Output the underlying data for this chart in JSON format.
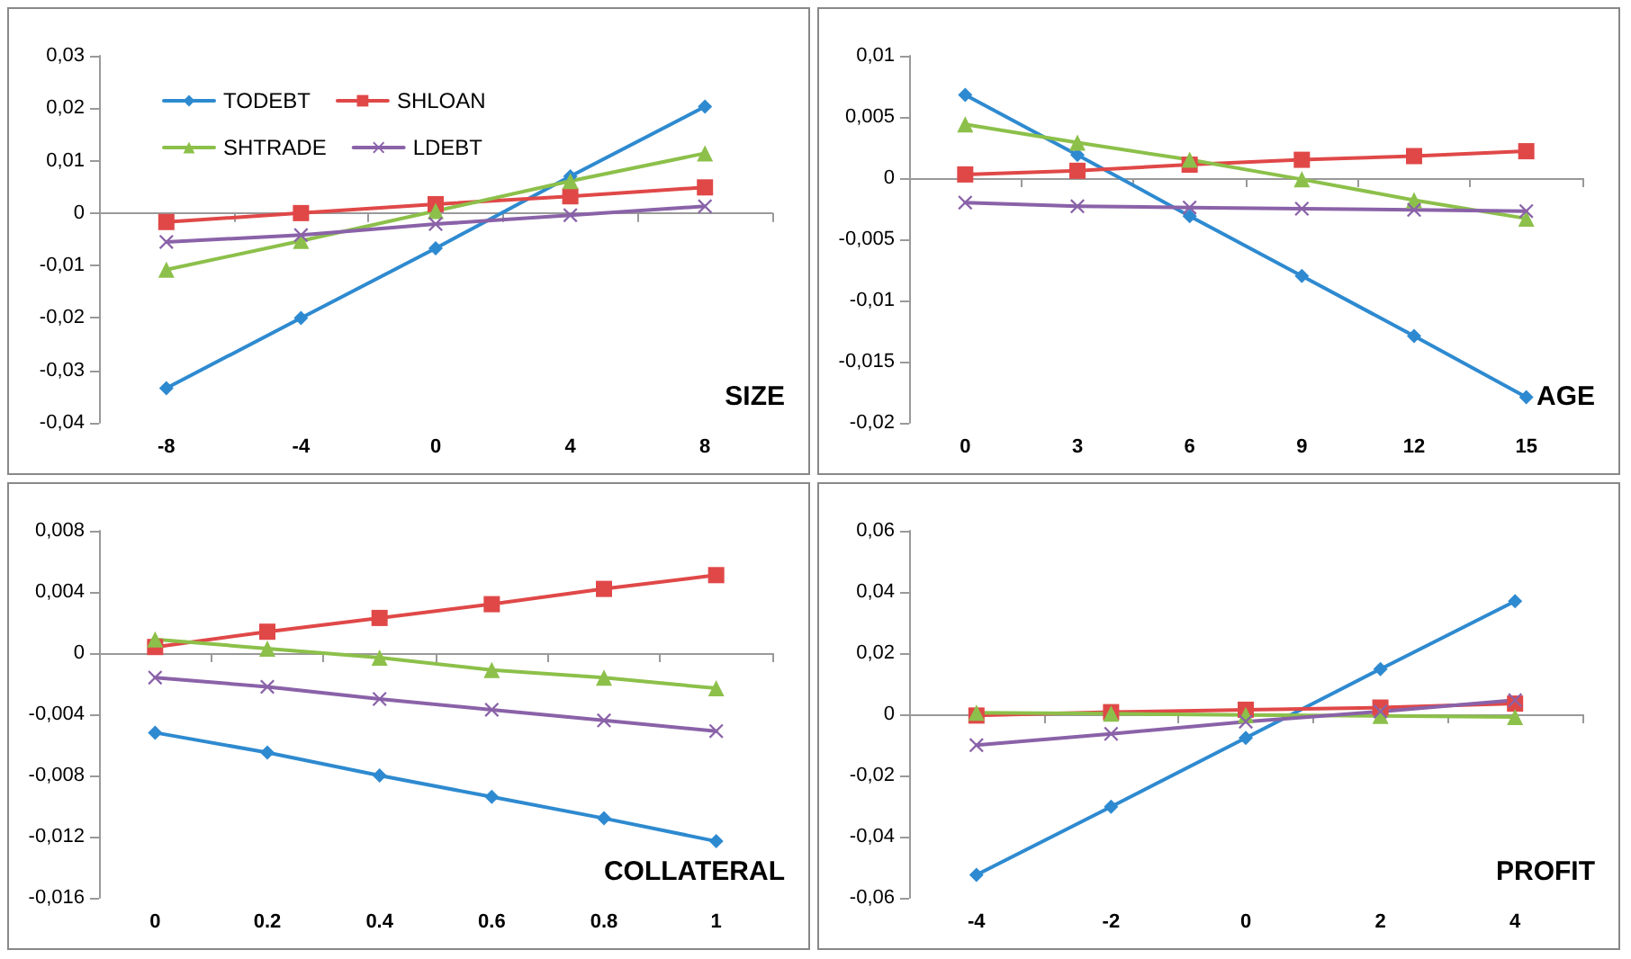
{
  "chart_data": [
    {
      "type": "line",
      "xlabel": "SIZE",
      "categories": [
        "-8",
        "-4",
        "0",
        "4",
        "8"
      ],
      "ylim": [
        -0.04,
        0.03
      ],
      "yticks": [
        {
          "value": -0.04,
          "label": "-0,04"
        },
        {
          "value": -0.03,
          "label": "-0,03"
        },
        {
          "value": -0.02,
          "label": "-0,02"
        },
        {
          "value": -0.01,
          "label": "-0,01"
        },
        {
          "value": 0,
          "label": "0"
        },
        {
          "value": 0.01,
          "label": "0,01"
        },
        {
          "value": 0.02,
          "label": "0,02"
        },
        {
          "value": 0.03,
          "label": "0,03"
        }
      ],
      "legend": "top left",
      "series": [
        {
          "name": "TODEBT",
          "color": "#2e8ad0",
          "marker": "diamond",
          "values": [
            -0.0334,
            -0.02,
            -0.0067,
            0.007,
            0.0203
          ]
        },
        {
          "name": "SHLOAN",
          "color": "#e04848",
          "marker": "square",
          "values": [
            -0.0017,
            0,
            0.0017,
            0.0032,
            0.0049
          ]
        },
        {
          "name": "SHTRADE",
          "color": "#8cc04a",
          "marker": "triangle",
          "values": [
            -0.0108,
            -0.0053,
            0.0004,
            0.0061,
            0.0114
          ]
        },
        {
          "name": "LDEBT",
          "color": "#8a62a8",
          "marker": "cross",
          "values": [
            -0.0055,
            -0.0042,
            -0.0021,
            -0.0004,
            0.0013
          ]
        }
      ]
    },
    {
      "type": "line",
      "xlabel": "AGE",
      "categories": [
        "0",
        "3",
        "6",
        "9",
        "12",
        "15"
      ],
      "ylim": [
        -0.02,
        0.01
      ],
      "yticks": [
        {
          "value": -0.02,
          "label": "-0,02"
        },
        {
          "value": -0.015,
          "label": "-0,015"
        },
        {
          "value": -0.01,
          "label": "-0,01"
        },
        {
          "value": -0.005,
          "label": "-0,005"
        },
        {
          "value": 0,
          "label": "0"
        },
        {
          "value": 0.005,
          "label": "0,005"
        },
        {
          "value": 0.01,
          "label": "0,01"
        }
      ],
      "legend": false,
      "series": [
        {
          "color": "#2e8ad0",
          "marker": "diamond",
          "values": [
            0.0068,
            0.0019,
            -0.0031,
            -0.008,
            -0.0129,
            -0.0179
          ]
        },
        {
          "color": "#e04848",
          "marker": "square",
          "values": [
            0.0003,
            0.0006,
            0.0011,
            0.0015,
            0.0018,
            0.0022
          ]
        },
        {
          "color": "#8cc04a",
          "marker": "triangle",
          "values": [
            0.0044,
            0.0029,
            0.0015,
            -0.0001,
            -0.0018,
            -0.0033
          ]
        },
        {
          "color": "#8a62a8",
          "marker": "cross",
          "values": [
            -0.002,
            -0.0023,
            -0.0024,
            -0.0025,
            -0.0026,
            -0.0027
          ]
        }
      ]
    },
    {
      "type": "line",
      "xlabel": "COLLATERAL",
      "categories": [
        "0",
        "0.2",
        "0.4",
        "0.6",
        "0.8",
        "1"
      ],
      "ylim": [
        -0.016,
        0.008
      ],
      "yticks": [
        {
          "value": -0.016,
          "label": "-0,016"
        },
        {
          "value": -0.012,
          "label": "-0,012"
        },
        {
          "value": -0.008,
          "label": "-0,008"
        },
        {
          "value": -0.004,
          "label": "-0,004"
        },
        {
          "value": 0,
          "label": "0"
        },
        {
          "value": 0.004,
          "label": "0,004"
        },
        {
          "value": 0.008,
          "label": "0,008"
        }
      ],
      "legend": false,
      "series": [
        {
          "color": "#2e8ad0",
          "marker": "diamond",
          "values": [
            -0.0052,
            -0.0065,
            -0.008,
            -0.0094,
            -0.0108,
            -0.0123
          ]
        },
        {
          "color": "#e04848",
          "marker": "square",
          "values": [
            0.0004,
            0.0014,
            0.0023,
            0.0032,
            0.0042,
            0.0051
          ]
        },
        {
          "color": "#8cc04a",
          "marker": "triangle",
          "values": [
            0.0009,
            0.0003,
            -0.0003,
            -0.0011,
            -0.0016,
            -0.0023
          ]
        },
        {
          "color": "#8a62a8",
          "marker": "cross",
          "values": [
            -0.0016,
            -0.0022,
            -0.003,
            -0.0037,
            -0.0044,
            -0.0051
          ]
        }
      ]
    },
    {
      "type": "line",
      "xlabel": "PROFIT",
      "categories": [
        "-4",
        "-2",
        "0",
        "2",
        "4"
      ],
      "ylim": [
        -0.06,
        0.06
      ],
      "yticks": [
        {
          "value": -0.06,
          "label": "-0,06"
        },
        {
          "value": -0.04,
          "label": "-0,04"
        },
        {
          "value": -0.02,
          "label": "-0,02"
        },
        {
          "value": 0,
          "label": "0"
        },
        {
          "value": 0.02,
          "label": "0,02"
        },
        {
          "value": 0.04,
          "label": "0,04"
        },
        {
          "value": 0.06,
          "label": "0,06"
        }
      ],
      "legend": false,
      "series": [
        {
          "color": "#2e8ad0",
          "marker": "diamond",
          "values": [
            -0.0525,
            -0.0302,
            -0.0077,
            0.0148,
            0.037
          ]
        },
        {
          "color": "#e04848",
          "marker": "square",
          "values": [
            -0.0004,
            0.0007,
            0.0015,
            0.0022,
            0.0035
          ]
        },
        {
          "color": "#8cc04a",
          "marker": "triangle",
          "values": [
            0.0005,
            0.0002,
            -0.0002,
            -0.0005,
            -0.0009
          ]
        },
        {
          "color": "#8a62a8",
          "marker": "cross",
          "values": [
            -0.0101,
            -0.0064,
            -0.0024,
            0.0009,
            0.0046
          ]
        }
      ]
    }
  ]
}
